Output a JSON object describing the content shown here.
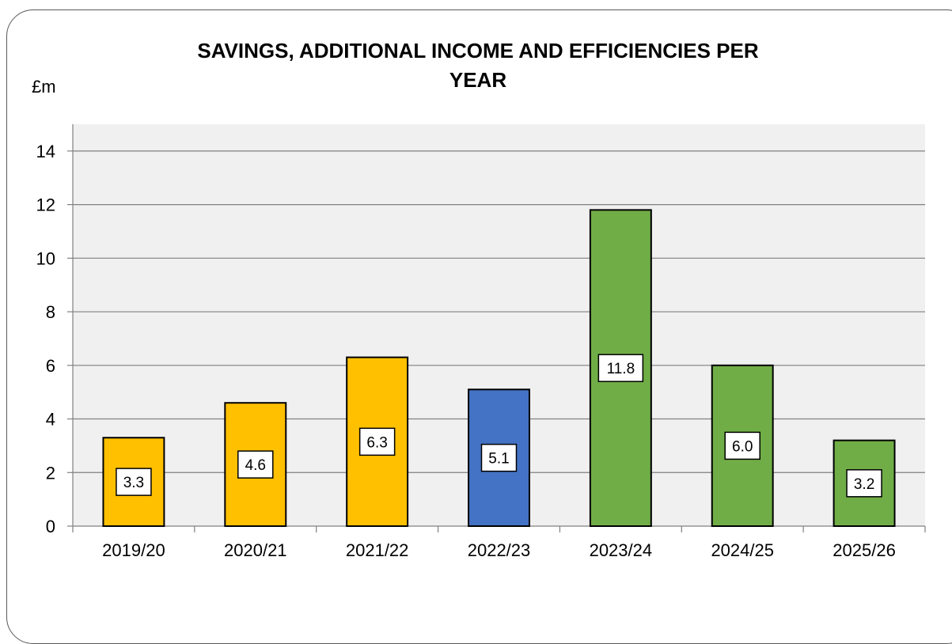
{
  "chart_data": {
    "type": "bar",
    "title": "SAVINGS, ADDITIONAL INCOME AND EFFICIENCIES PER YEAR",
    "title_lines": [
      "SAVINGS, ADDITIONAL INCOME AND EFFICIENCIES PER",
      "YEAR"
    ],
    "ylabel": "£m",
    "xlabel": "",
    "categories": [
      "2019/20",
      "2020/21",
      "2021/22",
      "2022/23",
      "2023/24",
      "2024/25",
      "2025/26"
    ],
    "values": [
      3.3,
      4.6,
      6.3,
      5.1,
      11.8,
      6.0,
      3.2
    ],
    "data_labels": [
      "3.3",
      "4.6",
      "6.3",
      "5.1",
      "11.8",
      "6.0",
      "3.2"
    ],
    "bar_colors": [
      "#FFC000",
      "#FFC000",
      "#FFC000",
      "#4472C4",
      "#70AD47",
      "#70AD47",
      "#70AD47"
    ],
    "ylim": [
      0,
      15
    ],
    "yticks": [
      0,
      2,
      4,
      6,
      8,
      10,
      12,
      14
    ],
    "grid": true,
    "plot_background": "#F0F0F0",
    "gridline_color": "#808080"
  }
}
